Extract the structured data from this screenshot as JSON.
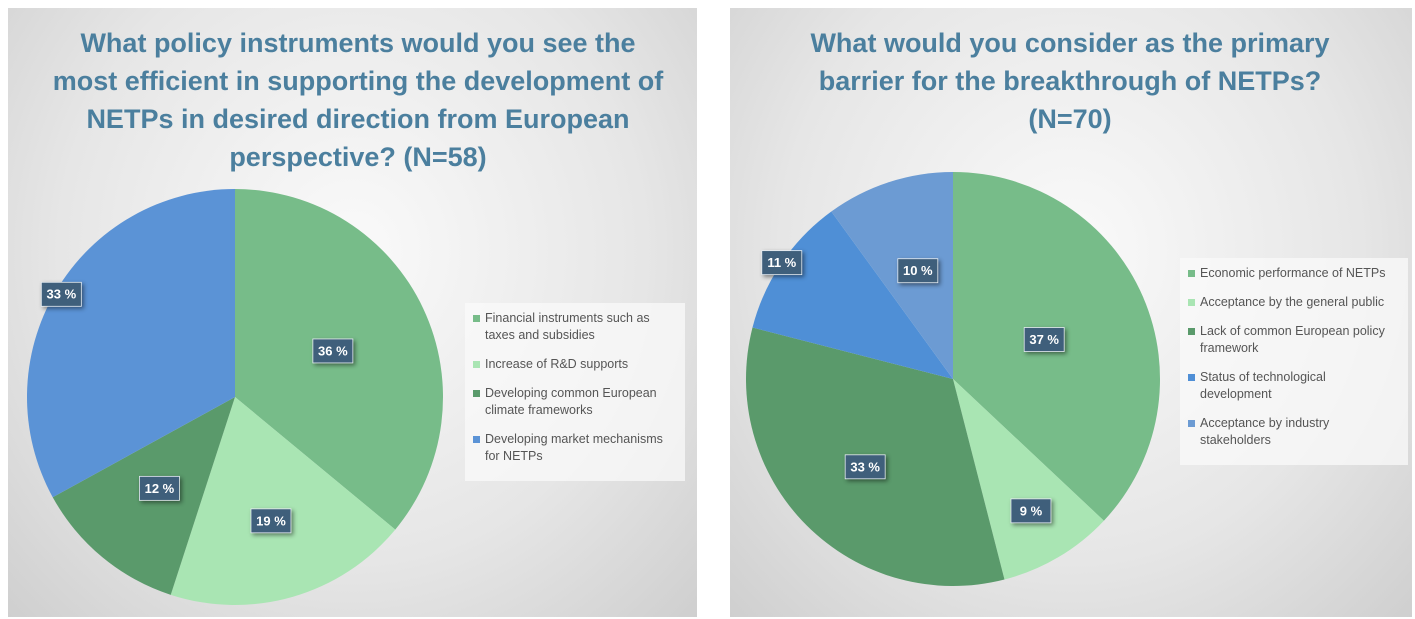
{
  "chart_data": [
    {
      "type": "pie",
      "title": "What policy instruments would you see the most efficient in supporting the development of NETPs in desired direction from European perspective? (N=58)",
      "categories": [
        "Financial instruments such as taxes and subsidies",
        "Increase of R&D supports",
        "Developing common European climate frameworks",
        "Developing market mechanisms for NETPs"
      ],
      "values": [
        36,
        19,
        12,
        33
      ],
      "value_labels": [
        "36 %",
        "19 %",
        "12 %",
        "33 %"
      ],
      "colors": [
        "#77bc89",
        "#a9e5b3",
        "#5a9a6b",
        "#5b93d6"
      ],
      "legend": "right"
    },
    {
      "type": "pie",
      "title": "What would you consider as the primary barrier for the breakthrough of NETPs? (N=70)",
      "categories": [
        "Economic performance of NETPs",
        "Acceptance by the general public",
        "Lack of common European policy framework",
        "Status of technological development",
        "Acceptance by industry stakeholders"
      ],
      "values": [
        37,
        9,
        33,
        11,
        10
      ],
      "value_labels": [
        "37 %",
        "9 %",
        "33 %",
        "11 %",
        "10 %"
      ],
      "colors": [
        "#77bc89",
        "#a9e5b3",
        "#5a9a6b",
        "#4f8fd6",
        "#6c9bd3"
      ],
      "legend": "right"
    }
  ]
}
